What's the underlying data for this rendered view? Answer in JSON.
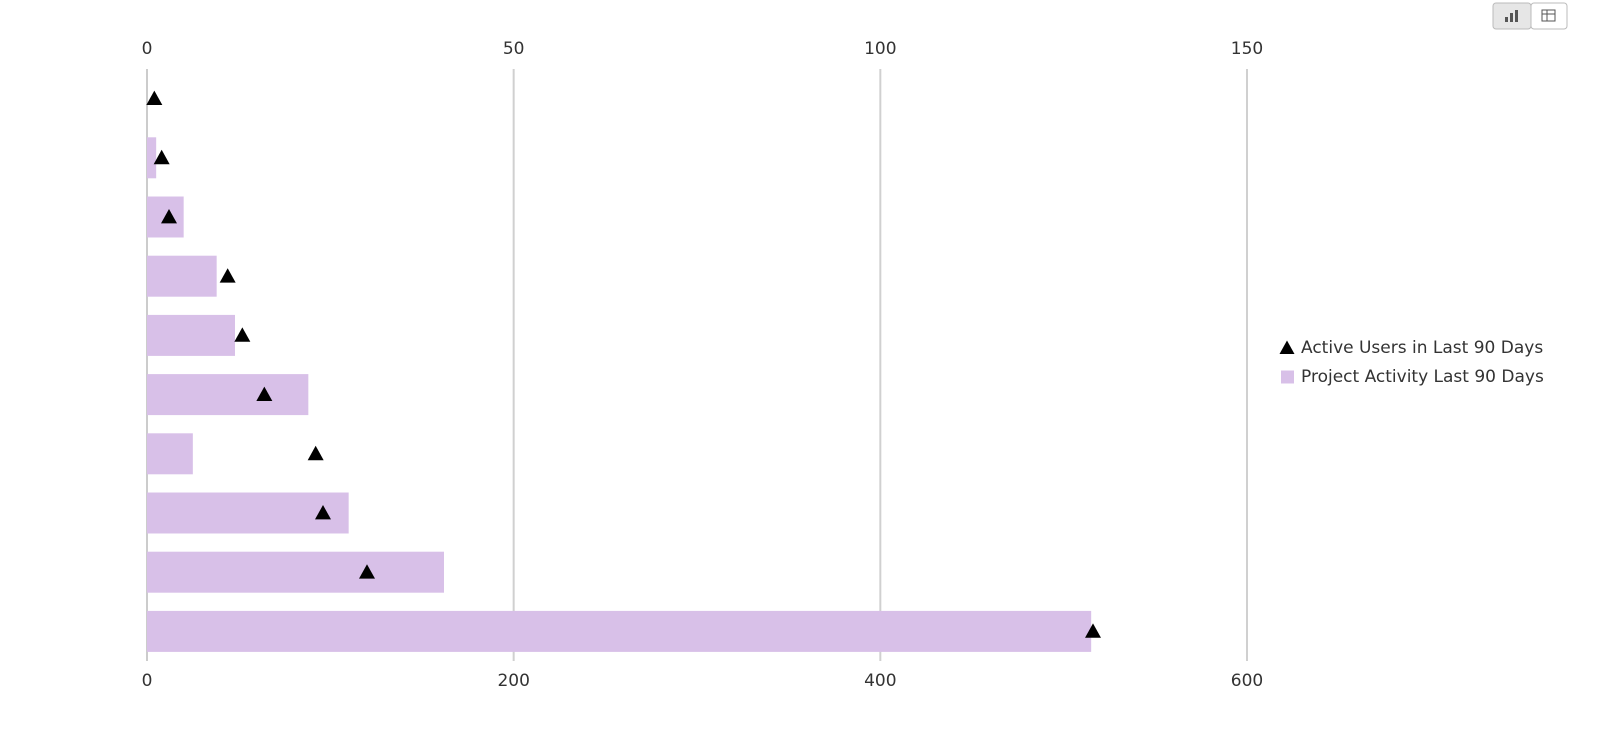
{
  "chart_data": {
    "type": "bar",
    "categories": [
      null,
      null,
      null,
      null,
      null,
      null,
      null,
      null,
      null,
      null
    ],
    "series": [
      {
        "name": "Project Activity Last 90 Days",
        "color": "#d8c0e8",
        "values": [
          0,
          5,
          20,
          38,
          48,
          88,
          25,
          110,
          162,
          515
        ]
      },
      {
        "name": "Active Users in Last 90 Days",
        "color": "#000000",
        "axis": "x2",
        "values": [
          1,
          2,
          3,
          11,
          13,
          16,
          23,
          24,
          30,
          129
        ]
      }
    ],
    "xlim": [
      0,
      600
    ],
    "xticks": [
      0,
      200,
      400,
      600
    ],
    "x2lim": [
      0,
      150
    ],
    "x2ticks": [
      0,
      50,
      100,
      150
    ],
    "grid": true
  }
}
